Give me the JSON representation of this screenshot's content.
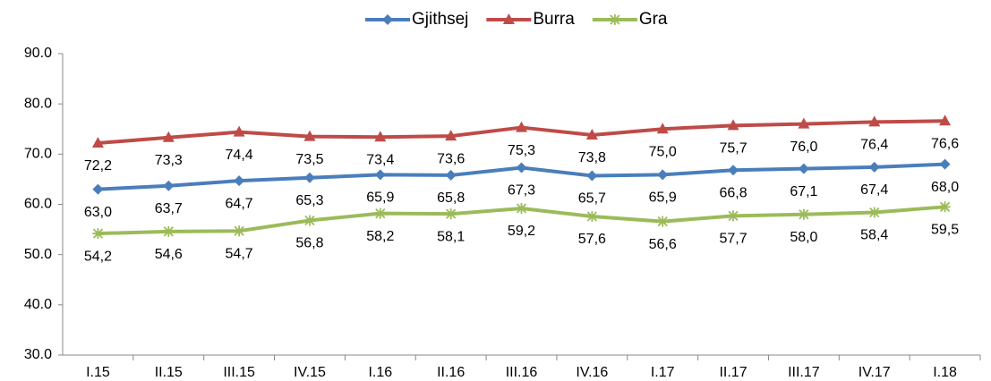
{
  "chart_data": {
    "type": "line",
    "categories": [
      "I.15",
      "II.15",
      "III.15",
      "IV.15",
      "I.16",
      "II.16",
      "III.16",
      "IV.16",
      "I.17",
      "II.17",
      "III.17",
      "IV.17",
      "I.18"
    ],
    "series": [
      {
        "name": "Gjithsej",
        "color": "#4a7ebb",
        "marker": "diamond",
        "values": [
          63.0,
          63.7,
          64.7,
          65.3,
          65.9,
          65.8,
          67.3,
          65.7,
          65.9,
          66.8,
          67.1,
          67.4,
          68.0
        ],
        "value_labels": [
          "63,0",
          "63,7",
          "64,7",
          "65,3",
          "65,9",
          "65,8",
          "67,3",
          "65,7",
          "65,9",
          "66,8",
          "67,1",
          "67,4",
          "68,0"
        ]
      },
      {
        "name": "Burra",
        "color": "#be4b48",
        "marker": "triangle",
        "values": [
          72.2,
          73.3,
          74.4,
          73.5,
          73.4,
          73.6,
          75.3,
          73.8,
          75.0,
          75.7,
          76.0,
          76.4,
          76.6
        ],
        "value_labels": [
          "72,2",
          "73,3",
          "74,4",
          "73,5",
          "73,4",
          "73,6",
          "75,3",
          "73,8",
          "75,0",
          "75,7",
          "76,0",
          "76,4",
          "76,6"
        ]
      },
      {
        "name": "Gra",
        "color": "#9bbb59",
        "marker": "star",
        "values": [
          54.2,
          54.6,
          54.7,
          56.8,
          58.2,
          58.1,
          59.2,
          57.6,
          56.6,
          57.7,
          58.0,
          58.4,
          59.5
        ],
        "value_labels": [
          "54,2",
          "54,6",
          "54,7",
          "56,8",
          "58,2",
          "58,1",
          "59,2",
          "57,6",
          "56,6",
          "57,7",
          "58,0",
          "58,4",
          "59,5"
        ]
      }
    ],
    "ylim": [
      30,
      90
    ],
    "yticks": [
      {
        "value": 30,
        "label": "30.0"
      },
      {
        "value": 40,
        "label": "40.0"
      },
      {
        "value": 50,
        "label": "50.0"
      },
      {
        "value": 60,
        "label": "60.0"
      },
      {
        "value": 70,
        "label": "70.0"
      },
      {
        "value": 80,
        "label": "80.0"
      },
      {
        "value": 90,
        "label": "90.0"
      }
    ],
    "grid": false,
    "legend": "top"
  }
}
